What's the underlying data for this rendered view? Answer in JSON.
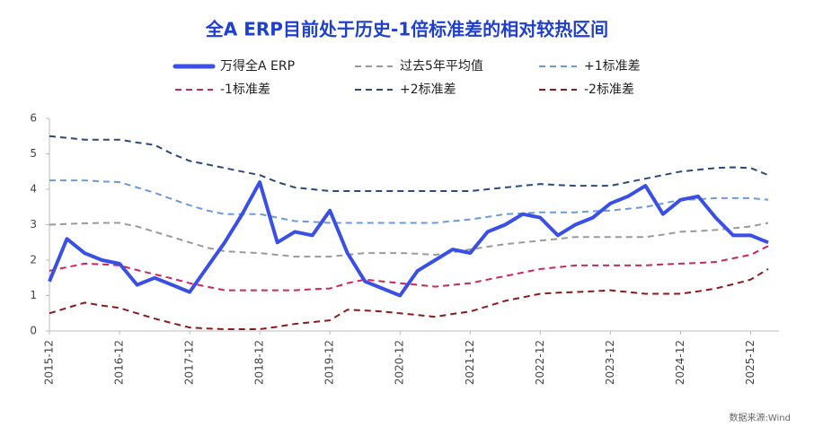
{
  "chart_data": {
    "type": "line",
    "title": "全A ERP目前处于历史-1倍标准差的相对较热区间",
    "source": "数据来源:Wind",
    "x": [
      "2015-12",
      "2016-03",
      "2016-06",
      "2016-09",
      "2016-12",
      "2017-03",
      "2017-06",
      "2017-09",
      "2017-12",
      "2018-03",
      "2018-06",
      "2018-09",
      "2018-12",
      "2019-03",
      "2019-06",
      "2019-09",
      "2019-12",
      "2020-03",
      "2020-06",
      "2020-09",
      "2020-12",
      "2021-03",
      "2021-06",
      "2021-09",
      "2021-12",
      "2022-03",
      "2022-06",
      "2022-09",
      "2022-12",
      "2023-03",
      "2023-06",
      "2023-09",
      "2023-12",
      "2024-03",
      "2024-06",
      "2024-09",
      "2024-12",
      "2025-03",
      "2025-06",
      "2025-09",
      "2025-12",
      "2026-03"
    ],
    "xticks": [
      "2015-12",
      "2016-12",
      "2017-12",
      "2018-12",
      "2019-12",
      "2020-12",
      "2021-12",
      "2022-12",
      "2023-12",
      "2024-12",
      "2025-12"
    ],
    "ylim": [
      0,
      6
    ],
    "yticks": [
      0,
      1,
      2,
      3,
      4,
      5,
      6
    ],
    "grid": false,
    "series": [
      {
        "name": "万得全A ERP",
        "color": "#3a4fe6",
        "style": "solid",
        "values": [
          1.4,
          2.6,
          2.2,
          2.0,
          1.9,
          1.3,
          1.5,
          1.3,
          1.1,
          1.8,
          2.5,
          3.3,
          4.2,
          2.5,
          2.8,
          2.7,
          3.4,
          2.2,
          1.4,
          1.2,
          1.0,
          1.7,
          2.0,
          2.3,
          2.2,
          2.8,
          3.0,
          3.3,
          3.2,
          2.7,
          3.0,
          3.2,
          3.6,
          3.8,
          4.1,
          3.3,
          3.7,
          3.8,
          3.2,
          2.7,
          2.7,
          2.5
        ]
      },
      {
        "name": "过去5年平均值",
        "color": "#9a9a9a",
        "style": "dashed",
        "values": [
          3.0,
          3.02,
          3.04,
          3.05,
          3.05,
          2.95,
          2.8,
          2.65,
          2.5,
          2.35,
          2.25,
          2.22,
          2.2,
          2.15,
          2.1,
          2.1,
          2.1,
          2.15,
          2.2,
          2.2,
          2.2,
          2.18,
          2.15,
          2.22,
          2.3,
          2.38,
          2.45,
          2.5,
          2.55,
          2.6,
          2.65,
          2.65,
          2.65,
          2.65,
          2.65,
          2.72,
          2.8,
          2.82,
          2.85,
          2.9,
          2.95,
          3.05
        ]
      },
      {
        "name": "+1标准差",
        "color": "#6a9bd8",
        "style": "dashed",
        "values": [
          4.25,
          4.25,
          4.25,
          4.22,
          4.2,
          4.05,
          3.9,
          3.72,
          3.55,
          3.4,
          3.3,
          3.3,
          3.3,
          3.2,
          3.1,
          3.08,
          3.05,
          3.05,
          3.05,
          3.05,
          3.05,
          3.05,
          3.05,
          3.1,
          3.15,
          3.22,
          3.3,
          3.32,
          3.35,
          3.35,
          3.35,
          3.38,
          3.4,
          3.45,
          3.5,
          3.6,
          3.7,
          3.72,
          3.75,
          3.75,
          3.75,
          3.7
        ]
      },
      {
        "name": "-1标准差",
        "color": "#d0245a",
        "style": "dashed",
        "values": [
          1.7,
          1.8,
          1.9,
          1.88,
          1.85,
          1.72,
          1.6,
          1.48,
          1.35,
          1.25,
          1.15,
          1.15,
          1.15,
          1.15,
          1.15,
          1.18,
          1.2,
          1.35,
          1.45,
          1.4,
          1.35,
          1.3,
          1.25,
          1.3,
          1.35,
          1.45,
          1.55,
          1.65,
          1.75,
          1.8,
          1.85,
          1.85,
          1.85,
          1.85,
          1.85,
          1.88,
          1.9,
          1.92,
          1.95,
          2.05,
          2.15,
          2.4
        ]
      },
      {
        "name": "+2标准差",
        "color": "#2b4a7a",
        "style": "dashed",
        "values": [
          5.5,
          5.45,
          5.4,
          5.4,
          5.4,
          5.32,
          5.25,
          5.0,
          4.8,
          4.7,
          4.6,
          4.5,
          4.4,
          4.2,
          4.05,
          4.0,
          3.95,
          3.95,
          3.95,
          3.95,
          3.95,
          3.95,
          3.95,
          3.95,
          3.95,
          4.0,
          4.05,
          4.1,
          4.15,
          4.12,
          4.1,
          4.1,
          4.1,
          4.2,
          4.3,
          4.4,
          4.5,
          4.55,
          4.6,
          4.62,
          4.6,
          4.4
        ]
      },
      {
        "name": "-2标准差",
        "color": "#8b1a1a",
        "style": "dashed",
        "values": [
          0.5,
          0.65,
          0.8,
          0.72,
          0.65,
          0.5,
          0.35,
          0.22,
          0.1,
          0.07,
          0.05,
          0.05,
          0.05,
          0.12,
          0.2,
          0.25,
          0.3,
          0.6,
          0.58,
          0.55,
          0.5,
          0.45,
          0.4,
          0.48,
          0.55,
          0.7,
          0.85,
          0.95,
          1.05,
          1.08,
          1.1,
          1.12,
          1.15,
          1.1,
          1.05,
          1.05,
          1.05,
          1.12,
          1.2,
          1.32,
          1.45,
          1.75
        ]
      }
    ]
  }
}
